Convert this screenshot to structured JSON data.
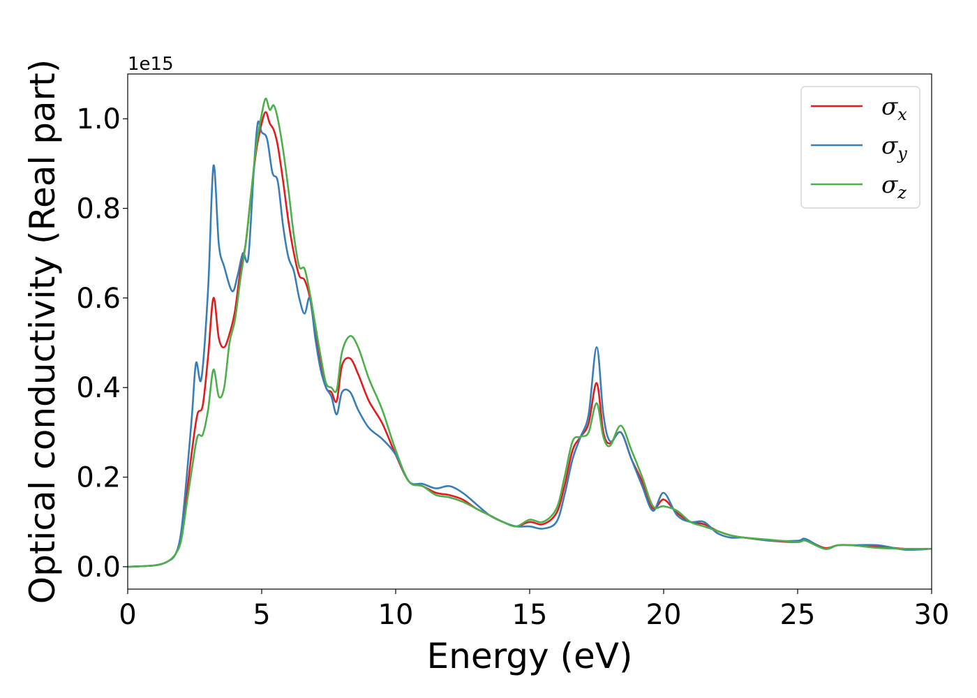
{
  "chart_data": {
    "type": "line",
    "title": "",
    "xlabel": "Energy (eV)",
    "ylabel": "Optical conductivity (Real part)",
    "y_offset_label": "1e15",
    "y_scale_factor": 1000000000000000.0,
    "xlim": [
      0,
      30
    ],
    "ylim": [
      -0.05,
      1.1
    ],
    "xticks": [
      0,
      5,
      10,
      15,
      20,
      25,
      30
    ],
    "xtick_labels": [
      "0",
      "5",
      "10",
      "15",
      "20",
      "25",
      "30"
    ],
    "yticks": [
      0.0,
      0.2,
      0.4,
      0.6,
      0.8,
      1.0
    ],
    "ytick_labels": [
      "0.0",
      "0.2",
      "0.4",
      "0.6",
      "0.8",
      "1.0"
    ],
    "grid": false,
    "legend_position": "top-right",
    "series": [
      {
        "name": "σx",
        "color": "#e41a1c",
        "points": [
          [
            0,
            0
          ],
          [
            1,
            0.003
          ],
          [
            1.5,
            0.012
          ],
          [
            1.8,
            0.03
          ],
          [
            2.0,
            0.07
          ],
          [
            2.2,
            0.16
          ],
          [
            2.4,
            0.26
          ],
          [
            2.6,
            0.34
          ],
          [
            2.8,
            0.36
          ],
          [
            3.0,
            0.47
          ],
          [
            3.2,
            0.6
          ],
          [
            3.4,
            0.51
          ],
          [
            3.6,
            0.49
          ],
          [
            3.8,
            0.52
          ],
          [
            4.0,
            0.57
          ],
          [
            4.2,
            0.66
          ],
          [
            4.4,
            0.72
          ],
          [
            4.6,
            0.83
          ],
          [
            4.8,
            0.93
          ],
          [
            5.0,
            0.99
          ],
          [
            5.15,
            1.015
          ],
          [
            5.3,
            0.99
          ],
          [
            5.45,
            0.975
          ],
          [
            5.6,
            0.94
          ],
          [
            5.8,
            0.86
          ],
          [
            6.0,
            0.77
          ],
          [
            6.2,
            0.7
          ],
          [
            6.4,
            0.65
          ],
          [
            6.6,
            0.64
          ],
          [
            6.8,
            0.6
          ],
          [
            7.0,
            0.52
          ],
          [
            7.2,
            0.46
          ],
          [
            7.4,
            0.4
          ],
          [
            7.6,
            0.39
          ],
          [
            7.8,
            0.37
          ],
          [
            8.0,
            0.45
          ],
          [
            8.3,
            0.465
          ],
          [
            8.6,
            0.43
          ],
          [
            9.0,
            0.37
          ],
          [
            9.5,
            0.32
          ],
          [
            10.0,
            0.25
          ],
          [
            10.5,
            0.19
          ],
          [
            11.0,
            0.18
          ],
          [
            11.5,
            0.165
          ],
          [
            12.0,
            0.16
          ],
          [
            12.5,
            0.15
          ],
          [
            13.0,
            0.13
          ],
          [
            13.5,
            0.115
          ],
          [
            14.0,
            0.1
          ],
          [
            14.5,
            0.09
          ],
          [
            15.0,
            0.1
          ],
          [
            15.5,
            0.095
          ],
          [
            16.0,
            0.12
          ],
          [
            16.3,
            0.18
          ],
          [
            16.6,
            0.26
          ],
          [
            16.9,
            0.29
          ],
          [
            17.2,
            0.32
          ],
          [
            17.5,
            0.41
          ],
          [
            17.75,
            0.3
          ],
          [
            18.0,
            0.275
          ],
          [
            18.4,
            0.3
          ],
          [
            18.8,
            0.24
          ],
          [
            19.2,
            0.19
          ],
          [
            19.6,
            0.13
          ],
          [
            20.0,
            0.15
          ],
          [
            20.5,
            0.12
          ],
          [
            21.0,
            0.1
          ],
          [
            21.5,
            0.095
          ],
          [
            22.0,
            0.08
          ],
          [
            22.5,
            0.07
          ],
          [
            23.0,
            0.065
          ],
          [
            24.0,
            0.058
          ],
          [
            25.0,
            0.055
          ],
          [
            25.3,
            0.06
          ],
          [
            26.0,
            0.042
          ],
          [
            26.5,
            0.048
          ],
          [
            27.0,
            0.048
          ],
          [
            28.0,
            0.045
          ],
          [
            29.0,
            0.04
          ],
          [
            30.0,
            0.04
          ]
        ]
      },
      {
        "name": "σy",
        "color": "#377eb8",
        "points": [
          [
            0,
            0
          ],
          [
            1,
            0.003
          ],
          [
            1.5,
            0.012
          ],
          [
            1.8,
            0.03
          ],
          [
            2.0,
            0.08
          ],
          [
            2.2,
            0.2
          ],
          [
            2.4,
            0.34
          ],
          [
            2.55,
            0.455
          ],
          [
            2.75,
            0.42
          ],
          [
            3.0,
            0.62
          ],
          [
            3.2,
            0.895
          ],
          [
            3.4,
            0.72
          ],
          [
            3.6,
            0.67
          ],
          [
            3.9,
            0.615
          ],
          [
            4.1,
            0.65
          ],
          [
            4.3,
            0.7
          ],
          [
            4.5,
            0.69
          ],
          [
            4.7,
            0.88
          ],
          [
            4.85,
            0.99
          ],
          [
            5.0,
            0.97
          ],
          [
            5.2,
            0.955
          ],
          [
            5.4,
            0.88
          ],
          [
            5.6,
            0.86
          ],
          [
            5.8,
            0.76
          ],
          [
            6.0,
            0.69
          ],
          [
            6.2,
            0.66
          ],
          [
            6.4,
            0.6
          ],
          [
            6.6,
            0.565
          ],
          [
            6.8,
            0.6
          ],
          [
            7.0,
            0.51
          ],
          [
            7.2,
            0.44
          ],
          [
            7.4,
            0.4
          ],
          [
            7.6,
            0.38
          ],
          [
            7.8,
            0.34
          ],
          [
            8.0,
            0.39
          ],
          [
            8.3,
            0.39
          ],
          [
            8.6,
            0.35
          ],
          [
            9.0,
            0.31
          ],
          [
            9.5,
            0.285
          ],
          [
            10.0,
            0.25
          ],
          [
            10.5,
            0.19
          ],
          [
            11.0,
            0.185
          ],
          [
            11.5,
            0.175
          ],
          [
            12.0,
            0.18
          ],
          [
            12.5,
            0.165
          ],
          [
            13.0,
            0.14
          ],
          [
            13.5,
            0.115
          ],
          [
            14.0,
            0.1
          ],
          [
            14.5,
            0.09
          ],
          [
            15.0,
            0.09
          ],
          [
            15.5,
            0.085
          ],
          [
            16.0,
            0.1
          ],
          [
            16.3,
            0.16
          ],
          [
            16.6,
            0.24
          ],
          [
            16.9,
            0.29
          ],
          [
            17.2,
            0.34
          ],
          [
            17.5,
            0.49
          ],
          [
            17.75,
            0.34
          ],
          [
            18.0,
            0.28
          ],
          [
            18.4,
            0.3
          ],
          [
            18.8,
            0.24
          ],
          [
            19.2,
            0.18
          ],
          [
            19.6,
            0.125
          ],
          [
            20.0,
            0.165
          ],
          [
            20.5,
            0.115
          ],
          [
            21.0,
            0.1
          ],
          [
            21.5,
            0.1
          ],
          [
            22.0,
            0.075
          ],
          [
            22.5,
            0.065
          ],
          [
            23.0,
            0.065
          ],
          [
            24.0,
            0.058
          ],
          [
            25.0,
            0.058
          ],
          [
            25.3,
            0.062
          ],
          [
            26.0,
            0.04
          ],
          [
            26.5,
            0.048
          ],
          [
            27.0,
            0.048
          ],
          [
            28.0,
            0.048
          ],
          [
            29.0,
            0.038
          ],
          [
            30.0,
            0.04
          ]
        ]
      },
      {
        "name": "σz",
        "color": "#4daf4a",
        "points": [
          [
            0,
            0
          ],
          [
            1,
            0.003
          ],
          [
            1.5,
            0.012
          ],
          [
            1.8,
            0.03
          ],
          [
            2.0,
            0.06
          ],
          [
            2.2,
            0.14
          ],
          [
            2.4,
            0.22
          ],
          [
            2.6,
            0.29
          ],
          [
            2.8,
            0.295
          ],
          [
            3.0,
            0.35
          ],
          [
            3.2,
            0.44
          ],
          [
            3.4,
            0.38
          ],
          [
            3.6,
            0.4
          ],
          [
            3.8,
            0.5
          ],
          [
            4.0,
            0.55
          ],
          [
            4.2,
            0.64
          ],
          [
            4.4,
            0.72
          ],
          [
            4.6,
            0.83
          ],
          [
            4.8,
            0.94
          ],
          [
            5.0,
            1.01
          ],
          [
            5.15,
            1.045
          ],
          [
            5.3,
            1.02
          ],
          [
            5.45,
            1.03
          ],
          [
            5.6,
            1.0
          ],
          [
            5.8,
            0.93
          ],
          [
            6.0,
            0.84
          ],
          [
            6.2,
            0.74
          ],
          [
            6.4,
            0.67
          ],
          [
            6.6,
            0.665
          ],
          [
            6.8,
            0.61
          ],
          [
            7.0,
            0.54
          ],
          [
            7.2,
            0.47
          ],
          [
            7.4,
            0.41
          ],
          [
            7.6,
            0.4
          ],
          [
            7.8,
            0.395
          ],
          [
            8.0,
            0.48
          ],
          [
            8.3,
            0.515
          ],
          [
            8.6,
            0.49
          ],
          [
            9.0,
            0.42
          ],
          [
            9.5,
            0.35
          ],
          [
            10.0,
            0.26
          ],
          [
            10.5,
            0.19
          ],
          [
            11.0,
            0.18
          ],
          [
            11.5,
            0.16
          ],
          [
            12.0,
            0.155
          ],
          [
            12.5,
            0.145
          ],
          [
            13.0,
            0.13
          ],
          [
            13.5,
            0.115
          ],
          [
            14.0,
            0.1
          ],
          [
            14.5,
            0.09
          ],
          [
            15.0,
            0.105
          ],
          [
            15.5,
            0.1
          ],
          [
            16.0,
            0.13
          ],
          [
            16.3,
            0.2
          ],
          [
            16.6,
            0.28
          ],
          [
            16.9,
            0.29
          ],
          [
            17.2,
            0.3
          ],
          [
            17.5,
            0.365
          ],
          [
            17.75,
            0.29
          ],
          [
            18.0,
            0.27
          ],
          [
            18.4,
            0.315
          ],
          [
            18.8,
            0.26
          ],
          [
            19.2,
            0.2
          ],
          [
            19.6,
            0.135
          ],
          [
            20.0,
            0.135
          ],
          [
            20.5,
            0.125
          ],
          [
            21.0,
            0.1
          ],
          [
            21.5,
            0.09
          ],
          [
            22.0,
            0.08
          ],
          [
            22.5,
            0.07
          ],
          [
            23.0,
            0.065
          ],
          [
            24.0,
            0.06
          ],
          [
            25.0,
            0.055
          ],
          [
            25.3,
            0.058
          ],
          [
            26.0,
            0.04
          ],
          [
            26.5,
            0.048
          ],
          [
            27.0,
            0.048
          ],
          [
            28.0,
            0.042
          ],
          [
            29.0,
            0.04
          ],
          [
            30.0,
            0.04
          ]
        ]
      }
    ]
  }
}
